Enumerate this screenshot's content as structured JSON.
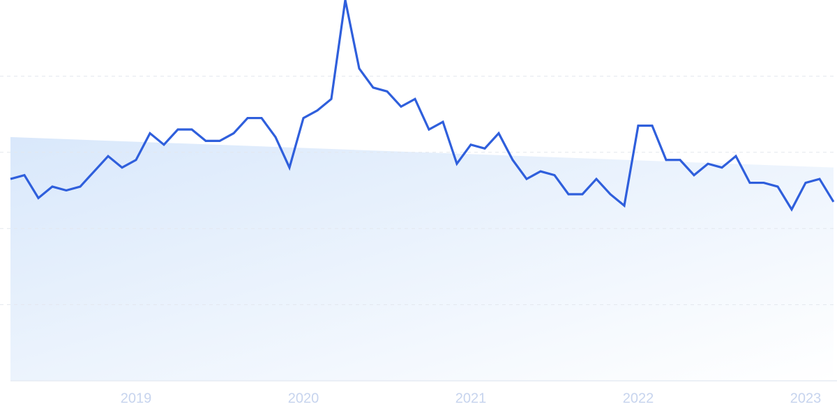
{
  "chart_data": {
    "type": "line",
    "categories": [
      null,
      null,
      null,
      null,
      null,
      null,
      null,
      null,
      null,
      "2019",
      null,
      null,
      null,
      null,
      null,
      null,
      null,
      null,
      null,
      null,
      null,
      "2020",
      null,
      null,
      null,
      null,
      null,
      null,
      null,
      null,
      null,
      null,
      null,
      "2021",
      null,
      null,
      null,
      null,
      null,
      null,
      null,
      null,
      null,
      null,
      null,
      "2022",
      null,
      null,
      null,
      null,
      null,
      null,
      null,
      null,
      null,
      null,
      null,
      "2023",
      null,
      null
    ],
    "series": [
      {
        "color": "#2f5fdc",
        "values": [
          53,
          54,
          48,
          51,
          50,
          51,
          55,
          59,
          56,
          58,
          65,
          62,
          66,
          66,
          63,
          63,
          65,
          69,
          69,
          64,
          56,
          69,
          71,
          74,
          100,
          82,
          77,
          76,
          72,
          74,
          66,
          68,
          57,
          62,
          61,
          65,
          58,
          53,
          55,
          54,
          49,
          49,
          53,
          49,
          46,
          67,
          67,
          58,
          58,
          54,
          57,
          56,
          59,
          52,
          52,
          51,
          45,
          52,
          53,
          47
        ]
      }
    ],
    "trend": {
      "color": "#dbe8fb",
      "values": [
        64,
        56
      ]
    },
    "ylim": [
      0,
      100
    ],
    "yticks": [
      20,
      40,
      60,
      80
    ],
    "grid": true
  }
}
